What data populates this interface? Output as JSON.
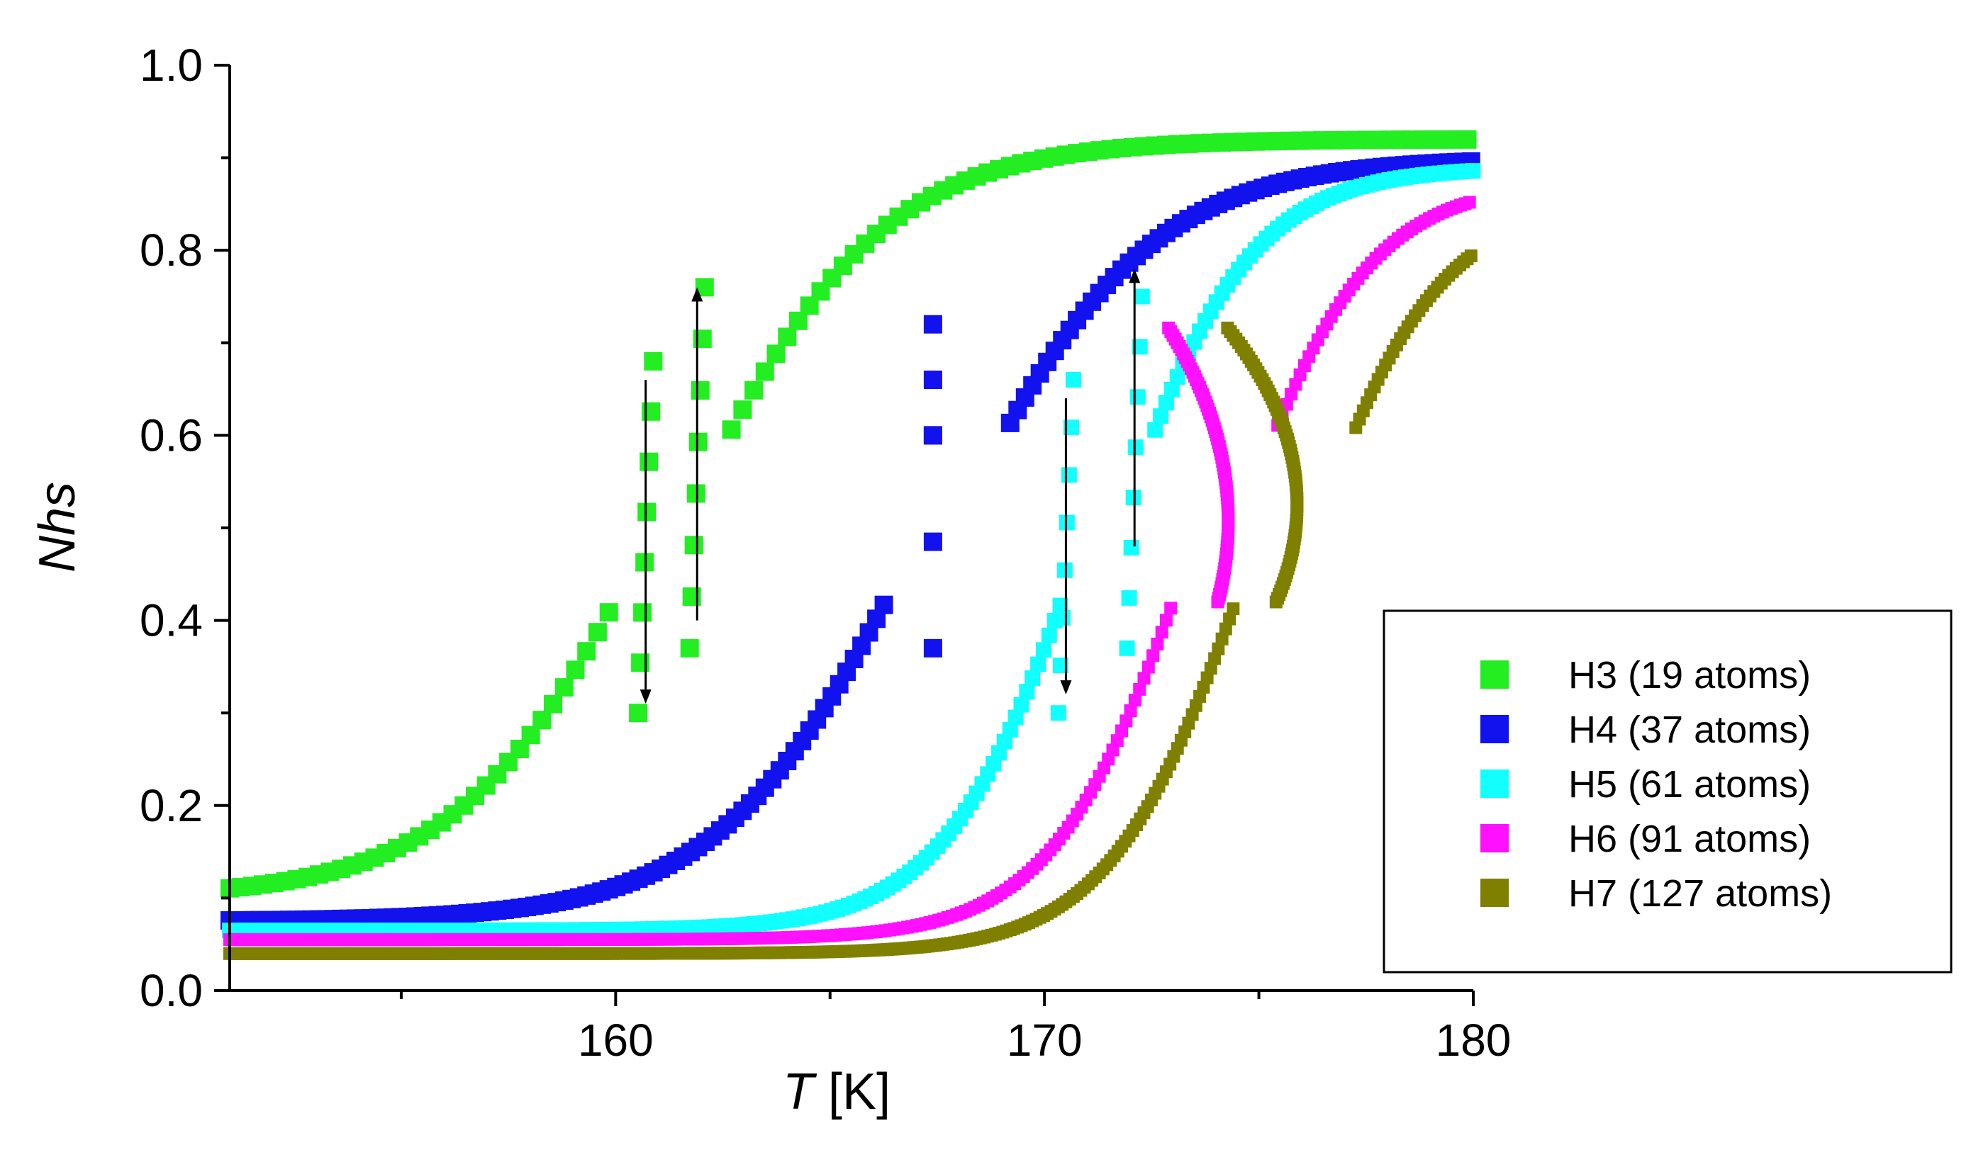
{
  "chart_data": {
    "type": "scatter",
    "title": "",
    "xlabel": {
      "italic": "T",
      "rest": " [K]"
    },
    "ylabel": {
      "italic": "Nhs"
    },
    "xlim": [
      151,
      180
    ],
    "ylim": [
      0.0,
      1.0
    ],
    "xticks": [
      {
        "value": 160,
        "label": "160"
      },
      {
        "value": 170,
        "label": "170"
      },
      {
        "value": 180,
        "label": "180"
      }
    ],
    "xminor": [
      155,
      165,
      175
    ],
    "yticks": [
      {
        "value": 0.0,
        "label": "0.0"
      },
      {
        "value": 0.2,
        "label": "0.2"
      },
      {
        "value": 0.4,
        "label": "0.4"
      },
      {
        "value": 0.6,
        "label": "0.6"
      },
      {
        "value": 0.8,
        "label": "0.8"
      },
      {
        "value": 1.0,
        "label": "1.0"
      }
    ],
    "yminor": [
      0.1,
      0.3,
      0.5,
      0.7,
      0.9
    ],
    "grid": false,
    "legend_position": "right",
    "series": [
      {
        "name": "H3 (19 atoms)",
        "color": "#22EE22",
        "Tc": 161.3,
        "D": 0.6,
        "ymin": 0.1,
        "ymax": 0.92,
        "jumps": [
          [
            160.7,
            0.68,
            0.3
          ],
          [
            161.9,
            0.37,
            0.76
          ]
        ]
      },
      {
        "name": "H4 (37 atoms)",
        "color": "#1212EE",
        "Tc": 167.4,
        "D": 0.7,
        "ymin": 0.075,
        "ymax": 0.9,
        "jumps": [
          [
            167.4,
            0.37,
            0.6
          ],
          [
            167.4,
            0.6,
            0.72
          ]
        ]
      },
      {
        "name": "H5 (61 atoms)",
        "color": "#11FFFF",
        "Tc": 171.2,
        "D": 0.7,
        "ymin": 0.065,
        "ymax": 0.89,
        "jumps": [
          [
            170.5,
            0.66,
            0.3
          ],
          [
            172.1,
            0.37,
            0.75
          ]
        ]
      },
      {
        "name": "H6 (91 atoms)",
        "color": "#FF11FF",
        "Tc": 173.8,
        "D": 0.9,
        "ymin": 0.055,
        "ymax": 0.875,
        "jumps": []
      },
      {
        "name": "H7 (127 atoms)",
        "color": "#808000",
        "Tc": 175.3,
        "D": 1.25,
        "ymin": 0.04,
        "ymax": 0.855,
        "jumps": []
      }
    ],
    "arrows": [
      {
        "x": 160.7,
        "from": 0.66,
        "to": 0.31
      },
      {
        "x": 161.9,
        "from": 0.4,
        "to": 0.76
      },
      {
        "x": 170.5,
        "from": 0.64,
        "to": 0.32
      },
      {
        "x": 172.1,
        "from": 0.48,
        "to": 0.78
      }
    ]
  }
}
